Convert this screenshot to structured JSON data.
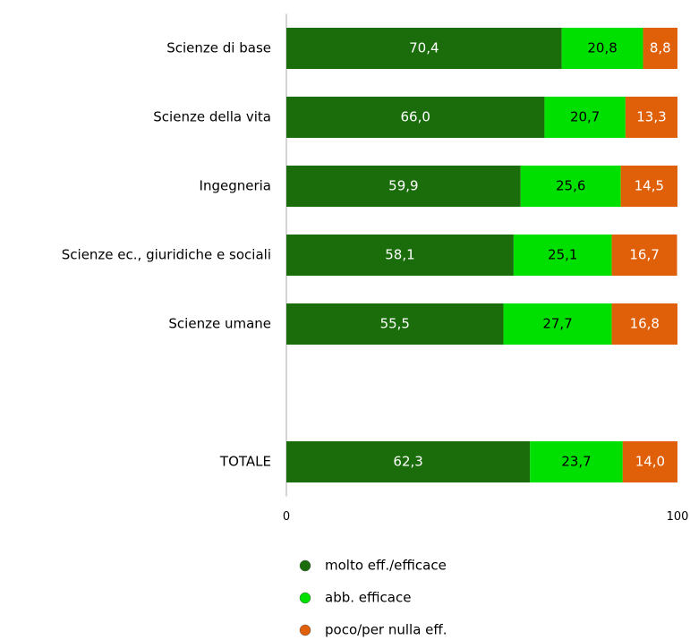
{
  "chart_data": {
    "type": "stacked-bar-horizontal",
    "categories": [
      "Scienze di base",
      "Scienze della vita",
      "Ingegneria",
      "Scienze ec., giuridiche e sociali",
      "Scienze umane",
      null,
      "TOTALE"
    ],
    "series": [
      {
        "name": "molto eff./efficace",
        "color": "#1b6d0b",
        "values": [
          70.4,
          66.0,
          59.9,
          58.1,
          55.5,
          null,
          62.3
        ],
        "value_labels": [
          "70,4",
          "66,0",
          "59,9",
          "58,1",
          "55,5",
          null,
          "62,3"
        ]
      },
      {
        "name": "abb. efficace",
        "color": "#00e000",
        "values": [
          20.8,
          20.7,
          25.6,
          25.1,
          27.7,
          null,
          23.7
        ],
        "value_labels": [
          "20,8",
          "20,7",
          "25,6",
          "25,1",
          "27,7",
          null,
          "23,7"
        ]
      },
      {
        "name": "poco/per nulla eff.",
        "color": "#e0600a",
        "values": [
          8.8,
          13.3,
          14.5,
          16.7,
          16.8,
          null,
          14.0
        ],
        "value_labels": [
          "8,8",
          "13,3",
          "14,5",
          "16,7",
          "16,8",
          null,
          "14,0"
        ]
      }
    ],
    "xlim": [
      0,
      100
    ],
    "xticks": [
      0,
      100
    ],
    "legend": "bottom"
  }
}
